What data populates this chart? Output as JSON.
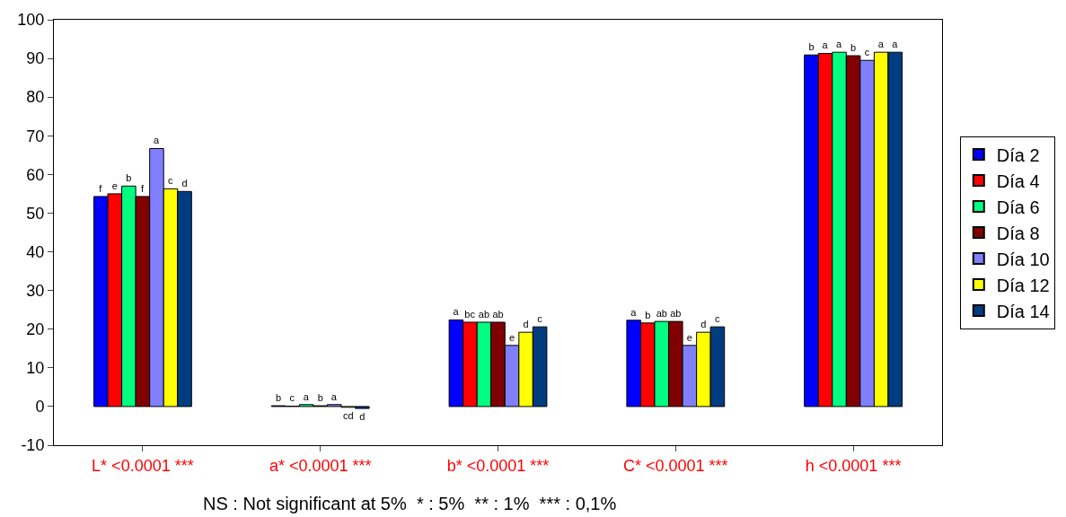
{
  "chart_data": {
    "type": "bar",
    "categories": [
      "L* <0.0001 ***",
      "a* <0.0001 ***",
      "b* <0.0001 ***",
      "C* <0.0001 ***",
      "h <0.0001 ***"
    ],
    "series": [
      {
        "name": "Día 2",
        "color": "#0000ff",
        "values": [
          54.3,
          0.2,
          22.4,
          22.3,
          90.9
        ],
        "value_labels": [
          "f",
          "b",
          "a",
          "a",
          "b"
        ]
      },
      {
        "name": "Día 4",
        "color": "#ff0000",
        "values": [
          55,
          0.1,
          21.8,
          21.6,
          91.3
        ],
        "value_labels": [
          "e",
          "c",
          "bc",
          "b",
          "a"
        ]
      },
      {
        "name": "Día 6",
        "color": "#00ff80",
        "values": [
          57,
          0.5,
          21.8,
          22,
          91.6
        ],
        "value_labels": [
          "b",
          "a",
          "ab",
          "ab",
          "a"
        ]
      },
      {
        "name": "Día 8",
        "color": "#800000",
        "values": [
          54.3,
          0.2,
          21.8,
          22,
          90.7
        ],
        "value_labels": [
          "f",
          "b",
          "ab",
          "ab",
          "b"
        ]
      },
      {
        "name": "Día 10",
        "color": "#8080ff",
        "values": [
          66.7,
          0.5,
          15.8,
          15.8,
          89.5
        ],
        "value_labels": [
          "a",
          "a",
          "e",
          "e",
          "c"
        ]
      },
      {
        "name": "Día 12",
        "color": "#ffff00",
        "values": [
          56.3,
          -0.2,
          19.2,
          19.2,
          91.6
        ],
        "value_labels": [
          "c",
          "cd",
          "d",
          "d",
          "a"
        ]
      },
      {
        "name": "Día 14",
        "color": "#003c80",
        "values": [
          55.6,
          -0.5,
          20.6,
          20.6,
          91.6
        ],
        "value_labels": [
          "d",
          "d",
          "c",
          "c",
          "a"
        ]
      }
    ],
    "ylim": [
      -10,
      100
    ],
    "yticks": [
      -10,
      0,
      10,
      20,
      30,
      40,
      50,
      60,
      70,
      80,
      90,
      100
    ],
    "legend": "right",
    "annotations": [
      "NS : Not significant at 5%  * : 5%  ** : 1%  *** : 0,1%"
    ]
  }
}
